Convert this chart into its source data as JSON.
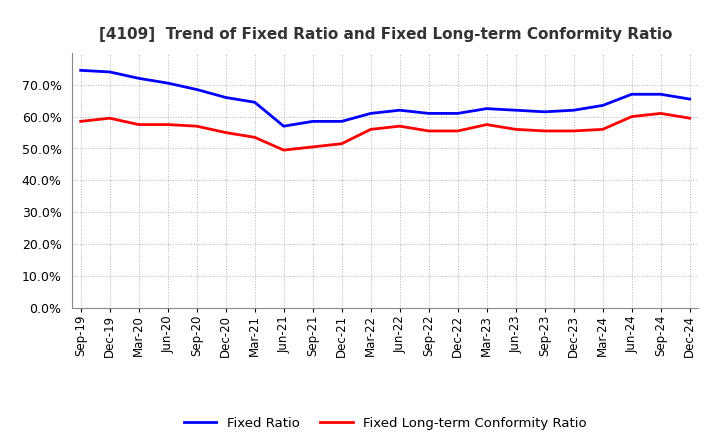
{
  "title": "[4109]  Trend of Fixed Ratio and Fixed Long-term Conformity Ratio",
  "x_labels": [
    "Sep-19",
    "Dec-19",
    "Mar-20",
    "Jun-20",
    "Sep-20",
    "Dec-20",
    "Mar-21",
    "Jun-21",
    "Sep-21",
    "Dec-21",
    "Mar-22",
    "Jun-22",
    "Sep-22",
    "Dec-22",
    "Mar-23",
    "Jun-23",
    "Sep-23",
    "Dec-23",
    "Mar-24",
    "Jun-24",
    "Sep-24",
    "Dec-24"
  ],
  "fixed_ratio": [
    74.5,
    74.0,
    72.0,
    70.5,
    68.5,
    66.0,
    64.5,
    57.0,
    58.5,
    58.5,
    61.0,
    62.0,
    61.0,
    61.0,
    62.5,
    62.0,
    61.5,
    62.0,
    63.5,
    67.0,
    67.0,
    65.5
  ],
  "fixed_lt_conformity": [
    58.5,
    59.5,
    57.5,
    57.5,
    57.0,
    55.0,
    53.5,
    49.5,
    50.5,
    51.5,
    56.0,
    57.0,
    55.5,
    55.5,
    57.5,
    56.0,
    55.5,
    55.5,
    56.0,
    60.0,
    61.0,
    59.5
  ],
  "fixed_ratio_color": "#0000FF",
  "fixed_lt_color": "#FF0000",
  "ylim": [
    0,
    80
  ],
  "yticks": [
    0,
    10,
    20,
    30,
    40,
    50,
    60,
    70
  ],
  "background_color": "#FFFFFF",
  "grid_color": "#AAAAAA",
  "legend_fixed": "Fixed Ratio",
  "legend_lt": "Fixed Long-term Conformity Ratio",
  "title_fontsize": 11,
  "tick_fontsize": 8.5,
  "ytick_fontsize": 9
}
